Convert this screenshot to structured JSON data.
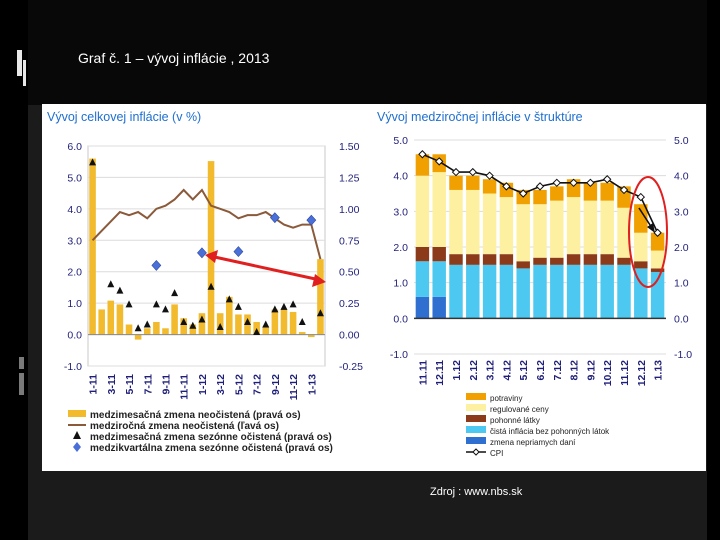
{
  "slide": {
    "title": "Graf č. 1 – vývoj inflácie , 2013",
    "source": "Zdroj : www.nbs.sk"
  },
  "colors": {
    "accent_red": "#e02020",
    "bar_yellow": "#f2bb2e",
    "line_brown": "#8a5a3a",
    "diamond_blue": "#4a6fd8",
    "axis_text": "#1f1f7a",
    "potraviny": "#f0a000",
    "regulovane": "#fdf0a0",
    "pohonne": "#8b3a1a",
    "cista": "#4dc8f0",
    "dane": "#2f6fd0",
    "cpi": "#111111"
  },
  "chart_data": [
    {
      "type": "bar",
      "title": "Vývoj celkovej inflácie (v %)",
      "x_tick_labels": [
        "1-11",
        "3-11",
        "5-11",
        "7-11",
        "9-11",
        "11-11",
        "1-12",
        "3-12",
        "5-12",
        "7-12",
        "9-12",
        "11-12",
        "1-13"
      ],
      "left_ticks": [
        "6.0",
        "5.0",
        "4.0",
        "3.0",
        "2.0",
        "1.0",
        "0.0",
        "-1.0"
      ],
      "right_ticks": [
        "1.50",
        "1.25",
        "1.00",
        "0.75",
        "0.50",
        "0.25",
        "0.00",
        "-0.25"
      ],
      "ylim_left": [
        -1.0,
        6.0
      ],
      "ylim_right": [
        -0.25,
        1.5
      ],
      "series": [
        {
          "name": "medzimesačná zmena neočistená (pravá os)",
          "axis": "right",
          "kind": "bar",
          "values": [
            1.4,
            0.2,
            0.27,
            0.24,
            0.08,
            -0.04,
            0.05,
            0.1,
            0.05,
            0.24,
            0.13,
            0.08,
            0.17,
            1.38,
            0.17,
            0.3,
            0.16,
            0.16,
            0.1,
            0.06,
            0.2,
            0.2,
            0.18,
            0.02,
            -0.02,
            0.6
          ]
        },
        {
          "name": "medziročná zmena neočistená (ľavá os)",
          "axis": "left",
          "kind": "line",
          "values": [
            3.0,
            3.3,
            3.6,
            3.9,
            3.8,
            3.9,
            3.7,
            4.0,
            4.1,
            4.3,
            4.6,
            4.3,
            4.6,
            4.1,
            4.0,
            3.9,
            3.7,
            3.8,
            3.8,
            3.9,
            3.7,
            3.5,
            3.4,
            3.5,
            3.5,
            2.4
          ]
        },
        {
          "name": "medzimesačná zmena sezónne očistená (pravá os)",
          "axis": "right",
          "kind": "triangle",
          "values": [
            1.37,
            null,
            0.4,
            0.35,
            0.24,
            0.05,
            0.08,
            0.24,
            0.2,
            0.33,
            0.1,
            0.07,
            0.12,
            0.38,
            0.06,
            0.28,
            0.22,
            0.1,
            0.02,
            0.08,
            0.2,
            0.22,
            0.24,
            0.1,
            null,
            0.17
          ]
        },
        {
          "name": "medzikvartálna zmena sezónne očistená (pravá os)",
          "axis": "right",
          "kind": "diamond",
          "values": [
            null,
            null,
            null,
            null,
            null,
            null,
            null,
            0.55,
            null,
            null,
            null,
            null,
            0.65,
            null,
            null,
            null,
            0.66,
            null,
            null,
            null,
            0.93,
            null,
            null,
            null,
            0.91,
            null
          ]
        }
      ],
      "legend": [
        "medzimesačná zmena neočistená (pravá os)",
        "medziročná zmena neočistená (ľavá os)",
        "medzimesačná zmena sezónne očistená (pravá os)",
        "medzikvartálna zmena sezónne očistená (pravá os)"
      ],
      "annotation": "red arrow indicating declining trend"
    },
    {
      "type": "bar",
      "stacked": true,
      "title": "Vývoj medziročnej inflácie v štruktúre",
      "categories": [
        "11.11",
        "12.11",
        "1.12",
        "2.12",
        "3.12",
        "4.12",
        "5.12",
        "6.12",
        "7.12",
        "8.12",
        "9.12",
        "10.12",
        "11.12",
        "12.12",
        "1.13"
      ],
      "ticks": [
        "5.0",
        "4.0",
        "3.0",
        "2.0",
        "1.0",
        "0.0",
        "-1.0"
      ],
      "ylim": [
        -1.0,
        5.0
      ],
      "series": [
        {
          "name": "zmena nepriamych daní",
          "values": [
            0.6,
            0.6,
            0.0,
            0.0,
            0.0,
            0.0,
            0.0,
            0.0,
            0.0,
            0.0,
            0.0,
            0.0,
            0.0,
            0.0,
            0.0
          ]
        },
        {
          "name": "čistá inflácia bez pohonných látok",
          "values": [
            1.0,
            1.0,
            1.5,
            1.5,
            1.5,
            1.5,
            1.4,
            1.5,
            1.5,
            1.5,
            1.5,
            1.5,
            1.5,
            1.4,
            1.3
          ]
        },
        {
          "name": "pohonné látky",
          "values": [
            0.4,
            0.4,
            0.3,
            0.3,
            0.3,
            0.3,
            0.2,
            0.2,
            0.2,
            0.3,
            0.3,
            0.3,
            0.2,
            0.2,
            0.1
          ]
        },
        {
          "name": "regulované ceny",
          "values": [
            2.0,
            2.1,
            1.8,
            1.8,
            1.7,
            1.6,
            1.6,
            1.5,
            1.6,
            1.6,
            1.5,
            1.5,
            1.4,
            0.8,
            0.5
          ]
        },
        {
          "name": "potraviny",
          "values": [
            0.6,
            0.5,
            0.4,
            0.4,
            0.4,
            0.4,
            0.4,
            0.4,
            0.4,
            0.5,
            0.5,
            0.5,
            0.6,
            0.8,
            0.5
          ]
        }
      ],
      "cpi": {
        "name": "CPI",
        "values": [
          4.6,
          4.4,
          4.1,
          4.1,
          4.0,
          3.7,
          3.5,
          3.7,
          3.8,
          3.8,
          3.8,
          3.9,
          3.6,
          3.4,
          2.4
        ]
      },
      "legend": [
        "potraviny",
        "regulované ceny",
        "pohonné látky",
        "čistá inflácia bez pohonných látok",
        "zmena nepriamych daní",
        "CPI"
      ],
      "annotation": "red ellipse around 12.12 and 1.13 with black arrow"
    }
  ]
}
